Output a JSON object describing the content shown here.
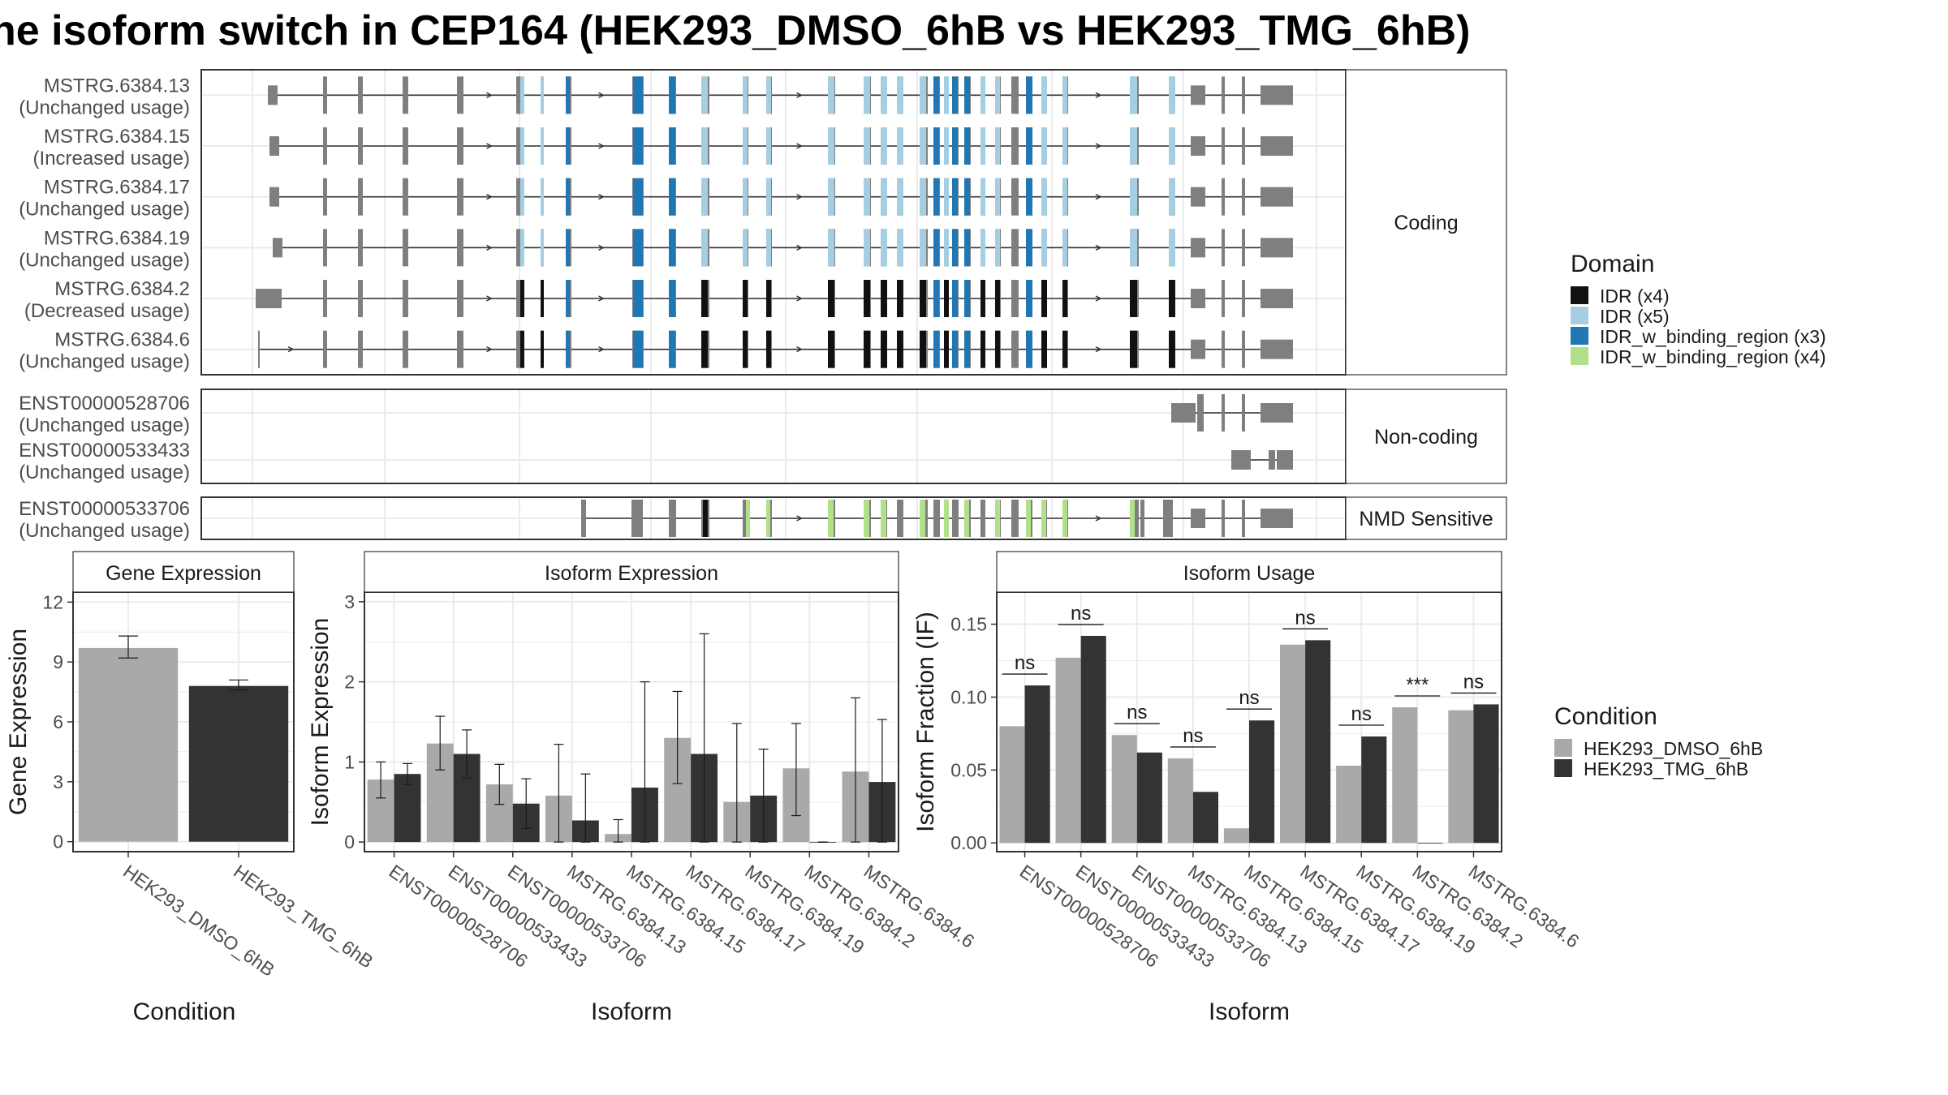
{
  "title": "he isoform switch in CEP164 (HEK293_DMSO_6hB vs HEK293_TMG_6hB)",
  "colors": {
    "exon_plain": "#7f7f7f",
    "idr_x4": "#111111",
    "idr_x5": "#a6cee3",
    "idr_bind_x3": "#1f78b4",
    "idr_bind_x4": "#b2df8a",
    "dmso": "#a9a9a9",
    "tmg": "#333333"
  },
  "structure": {
    "facets": {
      "coding": "Coding",
      "noncoding": "Non-coding",
      "nmd": "NMD Sensitive"
    },
    "coding_rows": [
      {
        "name": "MSTRG.6384.13",
        "usage": "(Unchanged usage)"
      },
      {
        "name": "MSTRG.6384.15",
        "usage": "(Increased usage)"
      },
      {
        "name": "MSTRG.6384.17",
        "usage": "(Unchanged usage)"
      },
      {
        "name": "MSTRG.6384.19",
        "usage": "(Unchanged usage)"
      },
      {
        "name": "MSTRG.6384.2",
        "usage": "(Decreased usage)"
      },
      {
        "name": "MSTRG.6384.6",
        "usage": "(Unchanged usage)"
      }
    ],
    "noncoding_rows": [
      {
        "name": "ENST00000528706",
        "usage": "(Unchanged usage)"
      },
      {
        "name": "ENST00000533433",
        "usage": "(Unchanged usage)"
      }
    ],
    "nmd_rows": [
      {
        "name": "ENST00000533706",
        "usage": "(Unchanged usage)"
      }
    ]
  },
  "legends": {
    "domain": {
      "title": "Domain",
      "items": [
        {
          "label": "IDR (x4)",
          "color": "#111111"
        },
        {
          "label": "IDR (x5)",
          "color": "#a6cee3"
        },
        {
          "label": "IDR_w_binding_region (x3)",
          "color": "#1f78b4"
        },
        {
          "label": "IDR_w_binding_region (x4)",
          "color": "#b2df8a"
        }
      ]
    },
    "condition": {
      "title": "Condition",
      "items": [
        {
          "label": "HEK293_DMSO_6hB",
          "color": "#a9a9a9"
        },
        {
          "label": "HEK293_TMG_6hB",
          "color": "#333333"
        }
      ]
    }
  },
  "chart_data": [
    {
      "type": "bar",
      "title": "Gene Expression",
      "xlabel": "Condition",
      "ylabel": "Gene Expression",
      "categories": [
        "HEK293_DMSO_6hB",
        "HEK293_TMG_6hB"
      ],
      "values": [
        9.7,
        7.8
      ],
      "error": [
        [
          9.2,
          10.3
        ],
        [
          7.6,
          8.1
        ]
      ],
      "yticks": [
        0,
        3,
        6,
        9,
        12
      ],
      "ylim": [
        -0.5,
        12.5
      ],
      "grid": true
    },
    {
      "type": "bar",
      "title": "Isoform Expression",
      "xlabel": "Isoform",
      "ylabel": "Isoform Expression",
      "categories": [
        "ENST00000528706",
        "ENST00000533433",
        "ENST00000533706",
        "MSTRG.6384.13",
        "MSTRG.6384.15",
        "MSTRG.6384.17",
        "MSTRG.6384.19",
        "MSTRG.6384.2",
        "MSTRG.6384.6"
      ],
      "series": [
        {
          "name": "HEK293_DMSO_6hB",
          "values": [
            0.78,
            1.23,
            0.72,
            0.58,
            0.1,
            1.3,
            0.5,
            0.92,
            0.88
          ],
          "error": [
            [
              0.55,
              1.0
            ],
            [
              0.9,
              1.57
            ],
            [
              0.47,
              0.97
            ],
            [
              0.0,
              1.22
            ],
            [
              0.0,
              0.28
            ],
            [
              0.73,
              1.88
            ],
            [
              0.0,
              1.48
            ],
            [
              0.33,
              1.48
            ],
            [
              0.0,
              1.8
            ]
          ]
        },
        {
          "name": "HEK293_TMG_6hB",
          "values": [
            0.85,
            1.1,
            0.48,
            0.27,
            0.68,
            1.1,
            0.58,
            0.0,
            0.75
          ],
          "error": [
            [
              0.72,
              0.98
            ],
            [
              0.8,
              1.4
            ],
            [
              0.17,
              0.79
            ],
            [
              0.0,
              0.85
            ],
            [
              0.0,
              2.0
            ],
            [
              0.0,
              2.6
            ],
            [
              0.0,
              1.16
            ],
            [
              0.0,
              0.0
            ],
            [
              0.0,
              1.53
            ]
          ]
        }
      ],
      "yticks": [
        0,
        1,
        2,
        3
      ],
      "ylim": [
        -0.12,
        3.12
      ],
      "grid": true
    },
    {
      "type": "bar",
      "title": "Isoform Usage",
      "xlabel": "Isoform",
      "ylabel": "Isoform Fraction (IF)",
      "categories": [
        "ENST00000528706",
        "ENST00000533433",
        "ENST00000533706",
        "MSTRG.6384.13",
        "MSTRG.6384.15",
        "MSTRG.6384.17",
        "MSTRG.6384.19",
        "MSTRG.6384.2",
        "MSTRG.6384.6"
      ],
      "series": [
        {
          "name": "HEK293_DMSO_6hB",
          "values": [
            0.08,
            0.127,
            0.074,
            0.058,
            0.01,
            0.136,
            0.053,
            0.093,
            0.091
          ]
        },
        {
          "name": "HEK293_TMG_6hB",
          "values": [
            0.108,
            0.142,
            0.062,
            0.035,
            0.084,
            0.139,
            0.073,
            0.0,
            0.095
          ]
        }
      ],
      "significance": [
        "ns",
        "ns",
        "ns",
        "ns",
        "ns",
        "ns",
        "ns",
        "***",
        "ns"
      ],
      "yticks": [
        0.0,
        0.05,
        0.1,
        0.15
      ],
      "yticklabels": [
        "0.00",
        "0.05",
        "0.10",
        "0.15"
      ],
      "ylim": [
        -0.006,
        0.172
      ],
      "grid": true
    }
  ]
}
